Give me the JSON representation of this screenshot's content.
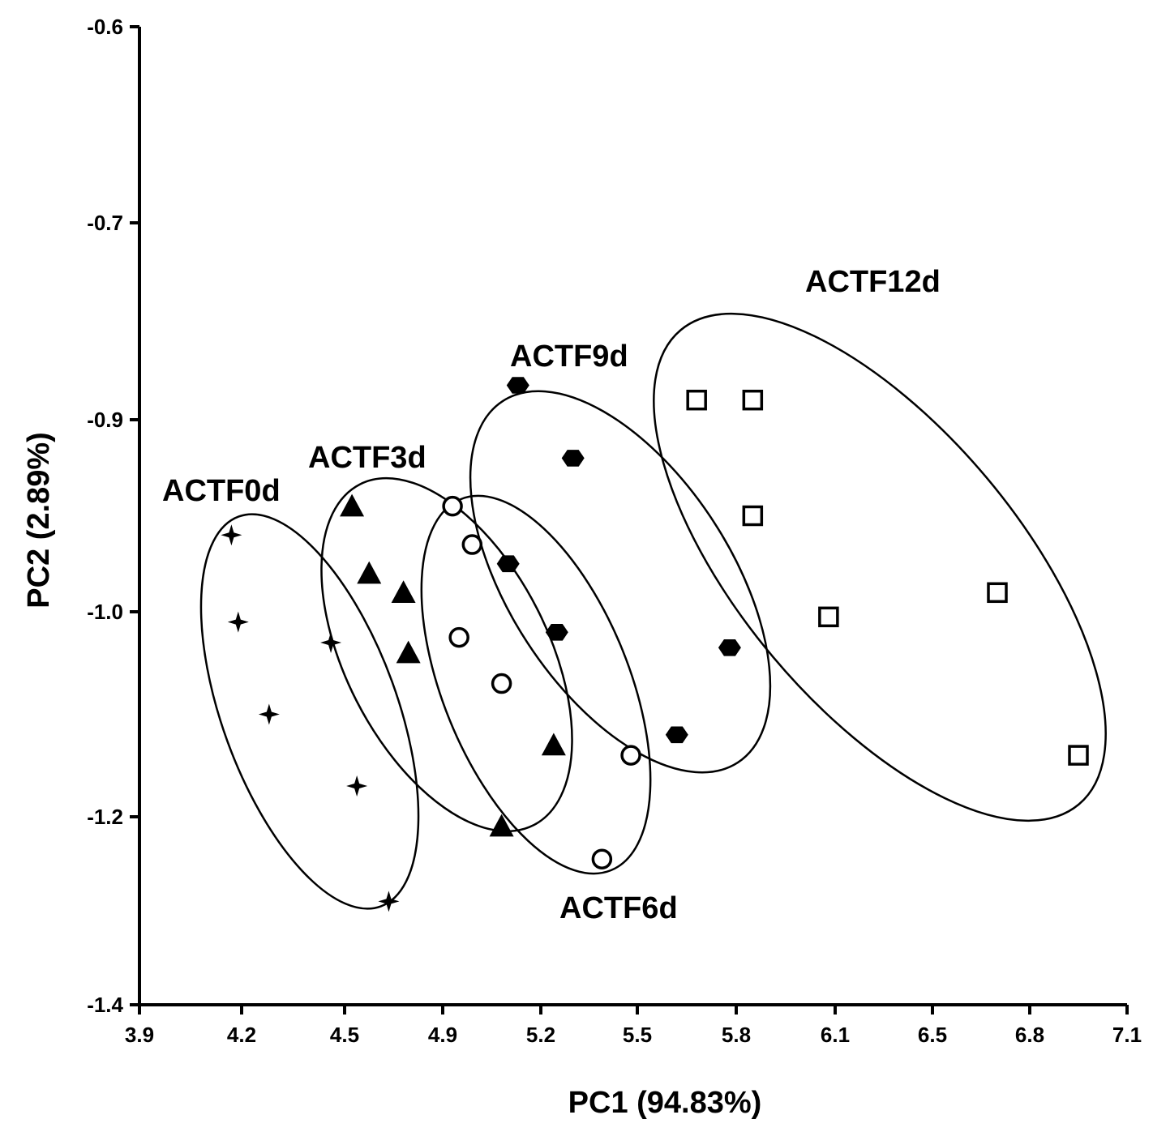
{
  "chart_data": {
    "type": "scatter",
    "xlabel": "PC1 (94.83%)",
    "ylabel": "PC2 (2.89%)",
    "x_ticks": [
      "3.9",
      "4.2",
      "4.5",
      "4.9",
      "5.2",
      "5.5",
      "5.8",
      "6.1",
      "6.5",
      "6.8",
      "7.1"
    ],
    "y_ticks": [
      "-0.6",
      "-0.7",
      "-0.9",
      "-1.0",
      "-1.2",
      "-1.4"
    ],
    "xlim": [
      3.9,
      7.1
    ],
    "ylim": [
      -1.4,
      -0.6
    ],
    "grid": false,
    "series": [
      {
        "name": "ACTF0d",
        "marker": "star",
        "points": [
          [
            4.17,
            -0.96
          ],
          [
            4.19,
            -1.01
          ],
          [
            4.46,
            -1.03
          ],
          [
            4.28,
            -1.1
          ],
          [
            4.55,
            -1.17
          ],
          [
            4.68,
            -1.29
          ]
        ]
      },
      {
        "name": "ACTF3d",
        "marker": "triangle",
        "points": [
          [
            4.53,
            -0.945
          ],
          [
            4.6,
            -0.98
          ],
          [
            4.74,
            -0.99
          ],
          [
            4.76,
            -1.04
          ],
          [
            5.24,
            -1.13
          ],
          [
            5.08,
            -1.21
          ]
        ]
      },
      {
        "name": "ACTF6d",
        "marker": "circle",
        "points": [
          [
            4.93,
            -0.945
          ],
          [
            4.99,
            -0.965
          ],
          [
            4.95,
            -1.025
          ],
          [
            5.08,
            -1.07
          ],
          [
            5.48,
            -1.14
          ],
          [
            5.39,
            -1.245
          ]
        ]
      },
      {
        "name": "ACTF9d",
        "marker": "hexagon",
        "points": [
          [
            5.13,
            -0.865
          ],
          [
            5.3,
            -0.92
          ],
          [
            5.1,
            -0.975
          ],
          [
            5.25,
            -1.02
          ],
          [
            5.78,
            -1.035
          ],
          [
            5.62,
            -1.12
          ]
        ]
      },
      {
        "name": "ACTF12d",
        "marker": "square",
        "points": [
          [
            5.68,
            -0.88
          ],
          [
            5.85,
            -0.88
          ],
          [
            5.85,
            -0.95
          ],
          [
            6.08,
            -1.005
          ],
          [
            6.7,
            -0.99
          ],
          [
            6.95,
            -1.14
          ]
        ]
      }
    ]
  }
}
